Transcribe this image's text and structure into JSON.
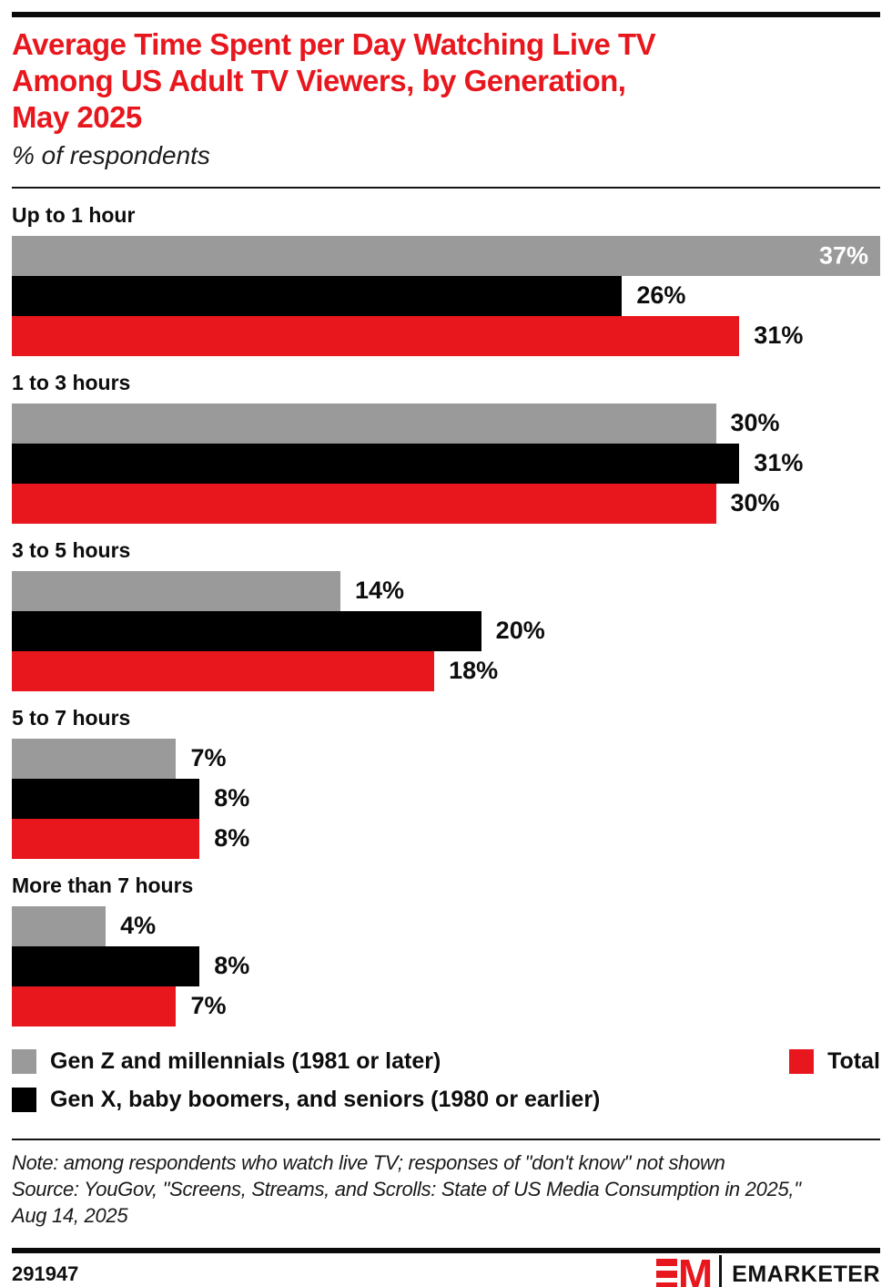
{
  "colors": {
    "accent": "#E8171E",
    "series_gray": "#9A9A9A",
    "series_black": "#000000",
    "text": "#111111"
  },
  "header": {
    "title": "Average Time Spent per Day Watching Live TV\nAmong US Adult TV Viewers, by Generation,\nMay 2025",
    "subtitle": "% of respondents"
  },
  "chart_data": {
    "type": "bar",
    "orientation": "horizontal",
    "value_suffix": "%",
    "scale_max": 37,
    "grid": false,
    "categories": [
      "Up to 1 hour",
      "1 to 3 hours",
      "3 to 5 hours",
      "5 to 7 hours",
      "More than 7 hours"
    ],
    "series": [
      {
        "name": "Gen Z and millennials (1981 or later)",
        "color": "#9A9A9A",
        "values": [
          37,
          30,
          14,
          7,
          4
        ]
      },
      {
        "name": "Gen X, baby boomers, and seniors (1980 or earlier)",
        "color": "#000000",
        "values": [
          26,
          31,
          20,
          8,
          8
        ]
      },
      {
        "name": "Total",
        "color": "#E8171E",
        "values": [
          31,
          30,
          18,
          8,
          7
        ]
      }
    ],
    "legend_position": "bottom"
  },
  "footnote": {
    "note": "Note: among respondents who watch live TV; responses of \"don't know\" not shown",
    "source": "Source: YouGov, \"Screens, Streams, and Scrolls: State of US Media Consumption in 2025,\"\nAug 14, 2025"
  },
  "footer": {
    "chart_id": "291947",
    "brand": "EMARKETER",
    "logo_monogram": "M"
  }
}
